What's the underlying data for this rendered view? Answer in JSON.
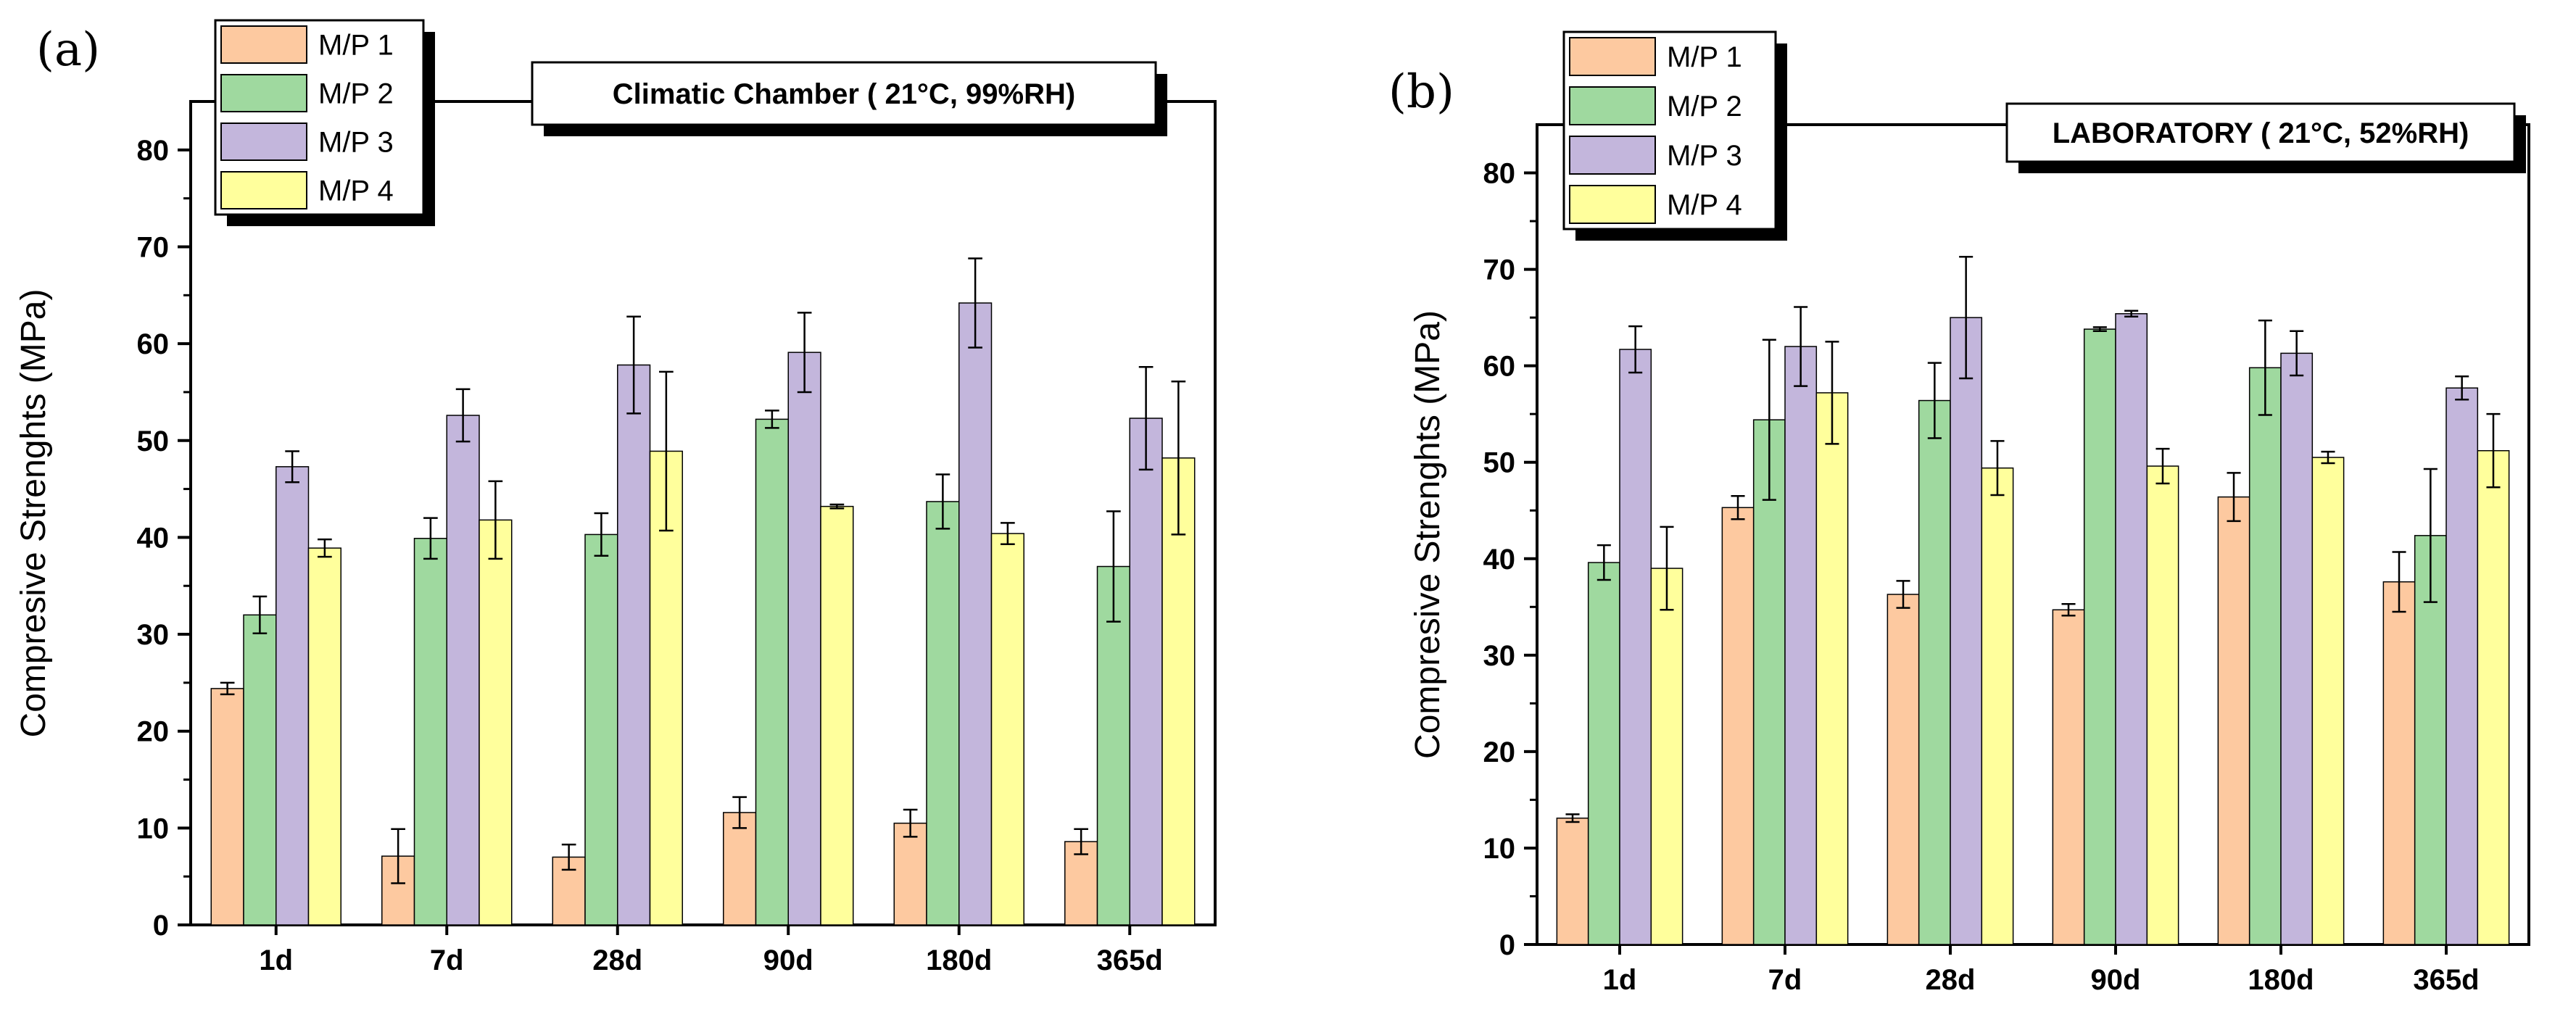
{
  "colors": {
    "M/P 1": "#fdc9a0",
    "M/P 2": "#9fd99f",
    "M/P 3": "#c3b6dc",
    "M/P 4": "#ffff9c"
  },
  "chart_data": [
    {
      "panel": "(a)",
      "type": "bar",
      "condition_label": "Climatic Chamber ( 21°C, 99%RH)",
      "categories": [
        "1d",
        "7d",
        "28d",
        "90d",
        "180d",
        "365d"
      ],
      "ylabel": "Compresive Strenghts (MPa)",
      "xlabel": "",
      "ylim": [
        0,
        85
      ],
      "yticks": [
        0,
        10,
        20,
        30,
        40,
        50,
        60,
        70,
        80
      ],
      "ytick_labels": [
        "0",
        "10",
        "20",
        "30",
        "40",
        "50",
        "60",
        "70",
        "80"
      ],
      "legend": [
        "M/P 1",
        "M/P 2",
        "M/P 3",
        "M/P 4"
      ],
      "legend_position": "top-left",
      "series": [
        {
          "name": "M/P 1",
          "values": [
            24.4,
            7.1,
            7.0,
            11.6,
            10.5,
            8.6
          ],
          "errors": [
            0.6,
            2.8,
            1.3,
            1.6,
            1.4,
            1.3
          ]
        },
        {
          "name": "M/P 2",
          "values": [
            32.0,
            39.9,
            40.3,
            52.2,
            43.7,
            37.0
          ],
          "errors": [
            1.9,
            2.1,
            2.2,
            0.9,
            2.8,
            5.7
          ]
        },
        {
          "name": "M/P 3",
          "values": [
            47.3,
            52.6,
            57.8,
            59.1,
            64.2,
            52.3
          ],
          "errors": [
            1.6,
            2.7,
            5.0,
            4.1,
            4.6,
            5.3
          ]
        },
        {
          "name": "M/P 4",
          "values": [
            38.9,
            41.8,
            48.9,
            43.2,
            40.4,
            48.2
          ],
          "errors": [
            0.9,
            4.0,
            8.2,
            0.2,
            1.1,
            7.9
          ]
        }
      ]
    },
    {
      "panel": "(b)",
      "type": "bar",
      "condition_label": "LABORATORY ( 21°C, 52%RH)",
      "categories": [
        "1d",
        "7d",
        "28d",
        "90d",
        "180d",
        "365d"
      ],
      "ylabel": "Compresive Strenghts (MPa)",
      "xlabel": "",
      "ylim": [
        0,
        85
      ],
      "yticks": [
        0,
        10,
        20,
        30,
        40,
        50,
        60,
        70,
        80
      ],
      "ytick_labels": [
        "0",
        "10",
        "20",
        "30",
        "40",
        "50",
        "60",
        "70",
        "80"
      ],
      "legend": [
        "M/P 1",
        "M/P 2",
        "M/P 3",
        "M/P 4"
      ],
      "legend_position": "top-left",
      "series": [
        {
          "name": "M/P 1",
          "values": [
            13.1,
            45.3,
            36.3,
            34.7,
            46.4,
            37.6
          ],
          "errors": [
            0.4,
            1.2,
            1.4,
            0.6,
            2.5,
            3.1
          ]
        },
        {
          "name": "M/P 2",
          "values": [
            39.6,
            54.4,
            56.4,
            63.8,
            59.8,
            42.4
          ],
          "errors": [
            1.8,
            8.3,
            3.9,
            0.2,
            4.9,
            6.9
          ]
        },
        {
          "name": "M/P 3",
          "values": [
            61.7,
            62.0,
            65.0,
            65.4,
            61.3,
            57.7
          ],
          "errors": [
            2.4,
            4.1,
            6.3,
            0.3,
            2.3,
            1.2
          ]
        },
        {
          "name": "M/P 4",
          "values": [
            39.0,
            57.2,
            49.4,
            49.6,
            50.5,
            51.2
          ],
          "errors": [
            4.3,
            5.3,
            2.8,
            1.8,
            0.6,
            3.8
          ]
        }
      ]
    }
  ]
}
